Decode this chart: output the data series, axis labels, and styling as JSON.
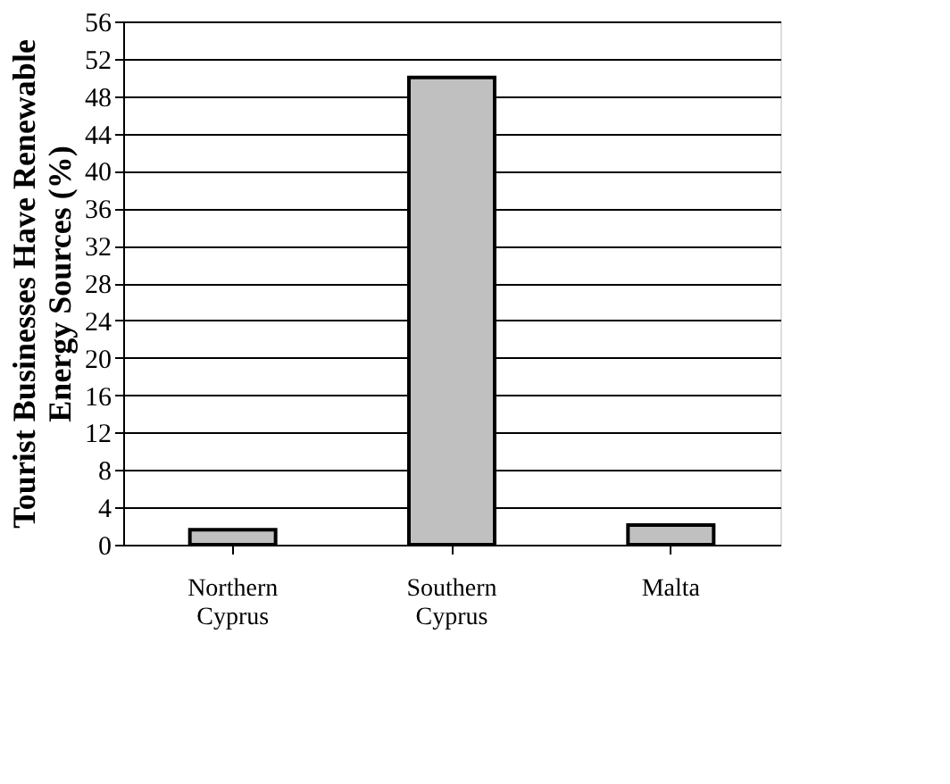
{
  "chart_data": {
    "type": "bar",
    "ylabel": "Tourist Businesses Have Renewable Energy Sources (%)",
    "categories": [
      "Northern Cyprus",
      "Southern Cyprus",
      "Malta"
    ],
    "values": [
      1.6,
      50,
      2.1
    ],
    "color": "#c0c0c0",
    "ylim": [
      0,
      56
    ],
    "yticks": [
      0,
      4,
      8,
      12,
      16,
      20,
      24,
      28,
      32,
      36,
      40,
      44,
      48,
      52,
      56
    ],
    "grid": "y"
  }
}
